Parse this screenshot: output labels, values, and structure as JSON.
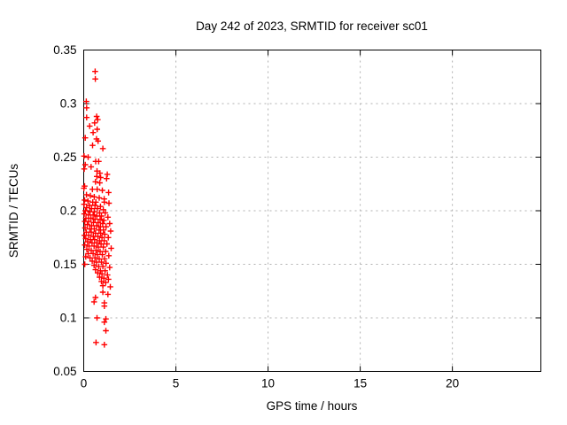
{
  "window": {
    "background": "#ffffff"
  },
  "colors": {
    "marker": "#ff0000",
    "grid": "#b0b0b0",
    "border": "#000000",
    "text": "#000000",
    "background": "#ffffff"
  },
  "chart_data": {
    "type": "scatter",
    "title": "Day 242 of 2023, SRMTID for receiver sc01",
    "xlabel": "GPS time / hours",
    "ylabel": "SRMTID / TECUs",
    "xlim": [
      0,
      24.8
    ],
    "ylim": [
      0.05,
      0.35
    ],
    "xticks": {
      "values": [
        0,
        5,
        10,
        15,
        20
      ],
      "labels": [
        "0",
        "5",
        "10",
        "15",
        "20"
      ]
    },
    "yticks": {
      "values": [
        0.05,
        0.1,
        0.15,
        0.2,
        0.25,
        0.3,
        0.35
      ],
      "labels": [
        "0.05",
        "0.1",
        "0.15",
        "0.2",
        "0.25",
        "0.3",
        "0.35"
      ]
    },
    "grid": true,
    "legend": "none",
    "marker_style": "plus",
    "points": [
      [
        0.62,
        0.33
      ],
      [
        0.63,
        0.323
      ],
      [
        0.14,
        0.302
      ],
      [
        0.16,
        0.296
      ],
      [
        0.16,
        0.287
      ],
      [
        0.7,
        0.288
      ],
      [
        0.76,
        0.285
      ],
      [
        0.59,
        0.282
      ],
      [
        0.32,
        0.279
      ],
      [
        0.73,
        0.276
      ],
      [
        0.51,
        0.273
      ],
      [
        0.08,
        0.268
      ],
      [
        0.69,
        0.267
      ],
      [
        0.78,
        0.265
      ],
      [
        0.48,
        0.261
      ],
      [
        1.04,
        0.258
      ],
      [
        0.02,
        0.251
      ],
      [
        0.24,
        0.25
      ],
      [
        0.65,
        0.246
      ],
      [
        0.81,
        0.246
      ],
      [
        0.08,
        0.243
      ],
      [
        0.4,
        0.241
      ],
      [
        0.03,
        0.239
      ],
      [
        0.72,
        0.237
      ],
      [
        0.88,
        0.235
      ],
      [
        1.28,
        0.234
      ],
      [
        0.71,
        0.232
      ],
      [
        0.92,
        0.231
      ],
      [
        1.24,
        0.23
      ],
      [
        0.64,
        0.227
      ],
      [
        0.87,
        0.226
      ],
      [
        0.05,
        0.223
      ],
      [
        0.01,
        0.221
      ],
      [
        0.47,
        0.22
      ],
      [
        0.73,
        0.22
      ],
      [
        1.01,
        0.219
      ],
      [
        1.35,
        0.217
      ],
      [
        0.15,
        0.215
      ],
      [
        0.36,
        0.214
      ],
      [
        0.57,
        0.213
      ],
      [
        0.84,
        0.212
      ],
      [
        1.11,
        0.211
      ],
      [
        0.05,
        0.21
      ],
      [
        0.23,
        0.209
      ],
      [
        0.49,
        0.208
      ],
      [
        0.66,
        0.208
      ],
      [
        1.12,
        0.208
      ],
      [
        1.37,
        0.207
      ],
      [
        0.02,
        0.206
      ],
      [
        0.31,
        0.205
      ],
      [
        0.61,
        0.205
      ],
      [
        0.91,
        0.204
      ],
      [
        0.16,
        0.203
      ],
      [
        0.43,
        0.202
      ],
      [
        0.74,
        0.202
      ],
      [
        1.06,
        0.201
      ],
      [
        0.09,
        0.2
      ],
      [
        0.34,
        0.199
      ],
      [
        0.57,
        0.199
      ],
      [
        0.86,
        0.198
      ],
      [
        1.17,
        0.198
      ],
      [
        0.03,
        0.197
      ],
      [
        0.26,
        0.196
      ],
      [
        0.51,
        0.196
      ],
      [
        0.71,
        0.195
      ],
      [
        0.96,
        0.195
      ],
      [
        1.31,
        0.194
      ],
      [
        0.12,
        0.193
      ],
      [
        0.39,
        0.193
      ],
      [
        0.61,
        0.192
      ],
      [
        0.89,
        0.192
      ],
      [
        1.09,
        0.191
      ],
      [
        0.06,
        0.19
      ],
      [
        0.27,
        0.19
      ],
      [
        0.53,
        0.189
      ],
      [
        0.79,
        0.189
      ],
      [
        1.03,
        0.188
      ],
      [
        1.41,
        0.188
      ],
      [
        0.19,
        0.187
      ],
      [
        0.43,
        0.186
      ],
      [
        0.69,
        0.186
      ],
      [
        0.91,
        0.185
      ],
      [
        1.21,
        0.185
      ],
      [
        0.07,
        0.184
      ],
      [
        0.33,
        0.183
      ],
      [
        0.57,
        0.183
      ],
      [
        0.83,
        0.182
      ],
      [
        1.07,
        0.182
      ],
      [
        1.46,
        0.181
      ],
      [
        0.14,
        0.18
      ],
      [
        0.41,
        0.18
      ],
      [
        0.64,
        0.179
      ],
      [
        0.92,
        0.179
      ],
      [
        1.14,
        0.178
      ],
      [
        0.04,
        0.177
      ],
      [
        0.27,
        0.177
      ],
      [
        0.52,
        0.176
      ],
      [
        0.77,
        0.176
      ],
      [
        0.99,
        0.175
      ],
      [
        1.33,
        0.175
      ],
      [
        0.11,
        0.174
      ],
      [
        0.37,
        0.173
      ],
      [
        0.59,
        0.173
      ],
      [
        0.86,
        0.172
      ],
      [
        1.11,
        0.172
      ],
      [
        0.21,
        0.171
      ],
      [
        0.45,
        0.17
      ],
      [
        0.71,
        0.17
      ],
      [
        0.94,
        0.169
      ],
      [
        1.26,
        0.169
      ],
      [
        0.06,
        0.168
      ],
      [
        0.29,
        0.167
      ],
      [
        0.56,
        0.167
      ],
      [
        0.79,
        0.166
      ],
      [
        1.06,
        0.166
      ],
      [
        1.49,
        0.165
      ],
      [
        0.17,
        0.164
      ],
      [
        0.41,
        0.163
      ],
      [
        0.67,
        0.163
      ],
      [
        0.89,
        0.162
      ],
      [
        1.19,
        0.162
      ],
      [
        0.24,
        0.16
      ],
      [
        0.51,
        0.16
      ],
      [
        0.74,
        0.159
      ],
      [
        1.01,
        0.159
      ],
      [
        1.36,
        0.158
      ],
      [
        0.11,
        0.157
      ],
      [
        0.34,
        0.156
      ],
      [
        0.61,
        0.156
      ],
      [
        0.84,
        0.155
      ],
      [
        1.13,
        0.155
      ],
      [
        0.46,
        0.153
      ],
      [
        0.69,
        0.152
      ],
      [
        0.96,
        0.152
      ],
      [
        1.21,
        0.151
      ],
      [
        0.06,
        0.15
      ],
      [
        0.56,
        0.149
      ],
      [
        0.81,
        0.148
      ],
      [
        1.04,
        0.148
      ],
      [
        1.41,
        0.147
      ],
      [
        0.64,
        0.145
      ],
      [
        0.91,
        0.144
      ],
      [
        1.16,
        0.144
      ],
      [
        0.76,
        0.142
      ],
      [
        0.99,
        0.141
      ],
      [
        1.29,
        0.14
      ],
      [
        0.86,
        0.138
      ],
      [
        1.09,
        0.137
      ],
      [
        1.34,
        0.136
      ],
      [
        0.96,
        0.134
      ],
      [
        1.19,
        0.133
      ],
      [
        1.04,
        0.13
      ],
      [
        1.44,
        0.129
      ],
      [
        1.04,
        0.124
      ],
      [
        1.31,
        0.122
      ],
      [
        0.64,
        0.119
      ],
      [
        0.56,
        0.115
      ],
      [
        1.12,
        0.114
      ],
      [
        1.12,
        0.111
      ],
      [
        0.72,
        0.1
      ],
      [
        1.2,
        0.099
      ],
      [
        1.12,
        0.096
      ],
      [
        1.2,
        0.088
      ],
      [
        0.67,
        0.077
      ],
      [
        1.12,
        0.075
      ]
    ]
  }
}
